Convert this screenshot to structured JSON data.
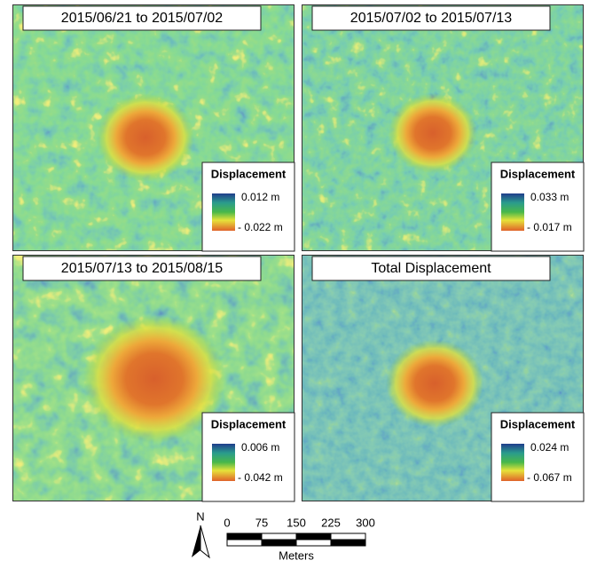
{
  "panels": [
    {
      "title": "2015/06/21 to 2015/07/02",
      "legend_title": "Displacement",
      "max_label": "0.012 m",
      "min_label": "- 0.022 m"
    },
    {
      "title": "2015/07/02 to 2015/07/13",
      "legend_title": "Displacement",
      "max_label": "0.033 m",
      "min_label": "- 0.017 m"
    },
    {
      "title": "2015/07/13 to 2015/08/15",
      "legend_title": "Displacement",
      "max_label": "0.006 m",
      "min_label": "- 0.042 m"
    },
    {
      "title": "Total Displacement",
      "legend_title": "Displacement",
      "max_label": "0.024 m",
      "min_label": "- 0.067 m"
    }
  ],
  "scale_bar": {
    "north": "N",
    "ticks": [
      "0",
      "75",
      "150",
      "225",
      "300"
    ],
    "unit": "Meters"
  }
}
